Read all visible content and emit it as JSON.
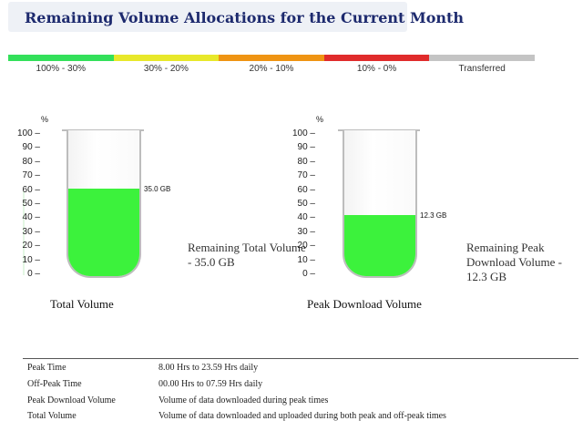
{
  "header": {
    "title": "Remaining Volume Allocations for the Current Month"
  },
  "legend": [
    {
      "label": "100% - 30%",
      "color": "#33e05a"
    },
    {
      "label": "30% - 20%",
      "color": "#e8e82a"
    },
    {
      "label": "20% - 10%",
      "color": "#ef9413"
    },
    {
      "label": "10% - 0%",
      "color": "#e02b2b"
    },
    {
      "label": "Transferred",
      "color": "#c4c4c4"
    }
  ],
  "gauges": [
    {
      "unit": "%",
      "ticks": [
        "100",
        "90",
        "80",
        "70",
        "60",
        "50",
        "40",
        "30",
        "20",
        "10",
        "0"
      ],
      "fill_percent": 60,
      "fill_label": "35.0 GB",
      "remaining": "Remaining Total Volume - 35.0 GB",
      "caption": "Total Volume"
    },
    {
      "unit": "%",
      "ticks": [
        "100",
        "90",
        "80",
        "70",
        "60",
        "50",
        "40",
        "30",
        "20",
        "10",
        "0"
      ],
      "fill_percent": 42,
      "fill_label": "12.3 GB",
      "remaining": "Remaining Peak Download Volume - 12.3 GB",
      "caption": "Peak Download Volume"
    }
  ],
  "definitions": [
    {
      "term": "Peak Time",
      "desc": "8.00 Hrs to 23.59 Hrs daily"
    },
    {
      "term": "Off-Peak Time",
      "desc": "00.00 Hrs to 07.59 Hrs daily"
    },
    {
      "term": "Peak Download Volume",
      "desc": "Volume of data downloaded during peak times"
    },
    {
      "term": "Total Volume",
      "desc": "Volume of data downloaded and uploaded during both peak and off-peak times"
    }
  ]
}
